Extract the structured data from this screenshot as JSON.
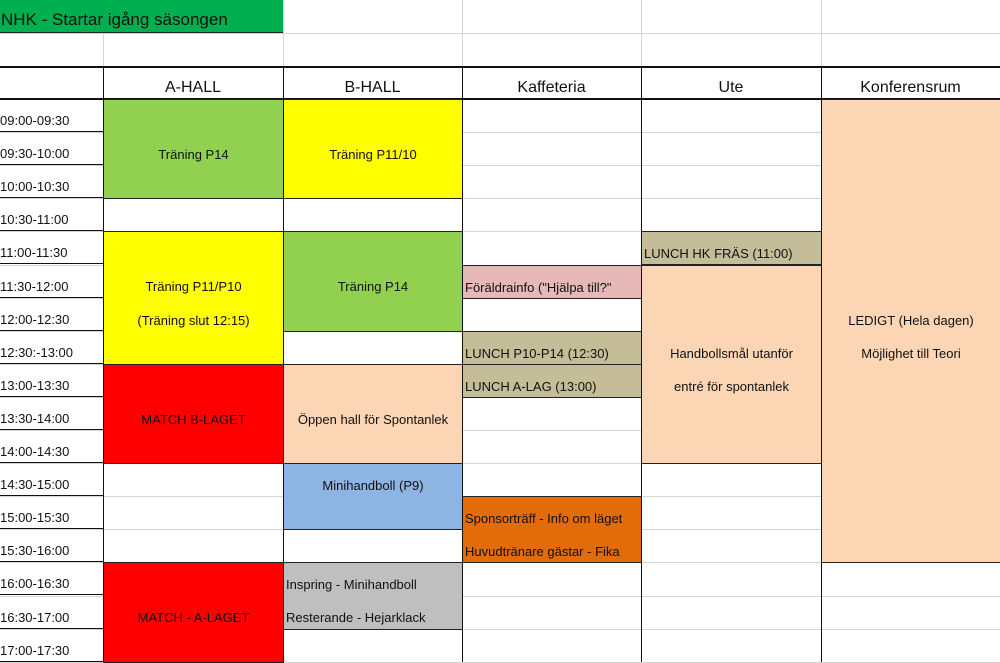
{
  "title": "NHK - Startar igång säsongen",
  "columns": [
    "A-HALL",
    "B-HALL",
    "Kaffeteria",
    "Ute",
    "Konferensrum"
  ],
  "times": [
    "09:00-09:30",
    "09:30-10:00",
    "10:00-10:30",
    "10:30-11:00",
    "11:00-11:30",
    "11:30-12:00",
    "12:00-12:30",
    "12:30:-13:00",
    "13:00-13:30",
    "13:30-14:00",
    "14:00-14:30",
    "14:30-15:00",
    "15:00-15:30",
    "15:30-16:00",
    "16:00-16:30",
    "16:30-17:00",
    "17:00-17:30"
  ],
  "colors": {
    "title": "#00b050",
    "green": "#92d050",
    "yellow": "#ffff00",
    "red": "#ff0000",
    "peach": "#fcd5b4",
    "blue": "#8db4e2",
    "gray": "#bfbfbf",
    "khaki": "#c4bd97",
    "pink": "#e6b8b7",
    "orange": "#e26b0a"
  },
  "events": [
    {
      "column": "A-HALL",
      "start": "09:00",
      "end": "10:30",
      "color": "green",
      "lines": [
        "Träning P14"
      ]
    },
    {
      "column": "A-HALL",
      "start": "11:00",
      "end": "13:00",
      "color": "yellow",
      "lines": [
        "Träning P11/P10",
        "(Träning slut 12:15)"
      ]
    },
    {
      "column": "A-HALL",
      "start": "13:00",
      "end": "14:30",
      "color": "red",
      "lines": [
        "MATCH B-LAGET"
      ]
    },
    {
      "column": "A-HALL",
      "start": "16:00",
      "end": "17:30",
      "color": "red",
      "lines": [
        "MATCH - A-LAGET"
      ]
    },
    {
      "column": "B-HALL",
      "start": "09:00",
      "end": "10:30",
      "color": "yellow",
      "lines": [
        "Träning P11/10"
      ]
    },
    {
      "column": "B-HALL",
      "start": "11:00",
      "end": "12:30",
      "color": "green",
      "lines": [
        "Träning P14"
      ]
    },
    {
      "column": "B-HALL",
      "start": "13:00",
      "end": "14:30",
      "color": "peach",
      "lines": [
        "Öppen hall för Spontanlek"
      ]
    },
    {
      "column": "B-HALL",
      "start": "14:30",
      "end": "15:30",
      "color": "blue",
      "lines": [
        "Minihandboll (P9)"
      ]
    },
    {
      "column": "B-HALL",
      "start": "16:00",
      "end": "17:00",
      "color": "gray",
      "lines": [
        "Inspring - Minihandboll",
        "Resterande - Hejarklack"
      ]
    },
    {
      "column": "Kaffeteria",
      "start": "11:30",
      "end": "12:00",
      "color": "pink",
      "lines": [
        "Föräldrainfo (\"Hjälpa till?\""
      ]
    },
    {
      "column": "Kaffeteria",
      "start": "12:30",
      "end": "13:00",
      "color": "khaki",
      "lines": [
        "LUNCH P10-P14 (12:30)"
      ]
    },
    {
      "column": "Kaffeteria",
      "start": "13:00",
      "end": "13:30",
      "color": "khaki",
      "lines": [
        "LUNCH A-LAG (13:00)"
      ]
    },
    {
      "column": "Kaffeteria",
      "start": "15:00",
      "end": "16:00",
      "color": "orange",
      "lines": [
        "Sponsorträff - Info om läget",
        "Huvudtränare gästar - Fika"
      ]
    },
    {
      "column": "Ute",
      "start": "11:00",
      "end": "11:30",
      "color": "khaki",
      "lines": [
        "LUNCH HK FRÄS (11:00)"
      ]
    },
    {
      "column": "Ute",
      "start": "11:30",
      "end": "14:30",
      "color": "peach",
      "lines": [
        "Handbollsmål utanför",
        "entré för spontanlek"
      ]
    },
    {
      "column": "Konferensrum",
      "start": "09:00",
      "end": "16:00",
      "color": "peach",
      "lines": [
        "LEDIGT (Hela dagen)",
        "Möjlighet till Teori"
      ]
    }
  ]
}
